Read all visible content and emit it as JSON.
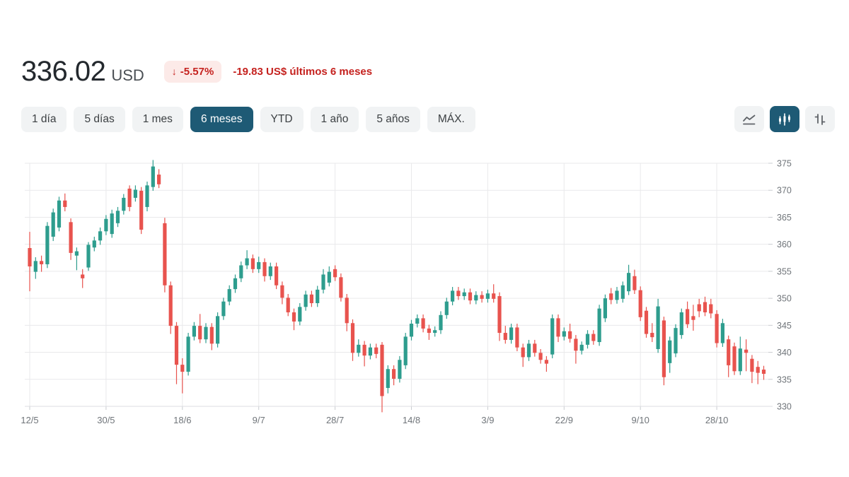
{
  "header": {
    "price": "336.02",
    "currency": "USD",
    "change_arrow": "↓",
    "change_percent": "-5.57%",
    "change_text": "-19.83 US$ últimos 6 meses"
  },
  "toolbar": {
    "ranges": [
      "1 día",
      "5 días",
      "1 mes",
      "6 meses",
      "YTD",
      "1 año",
      "5 años",
      "MÁX."
    ],
    "selected_range_index": 3,
    "chart_types": [
      "line-chart",
      "candlestick-chart",
      "ohlc-bars-chart"
    ],
    "selected_chart_type_index": 1
  },
  "colors": {
    "up": "#2e9d8e",
    "down": "#e8534e",
    "accent": "#1e5a75",
    "negative_text": "#c5221f",
    "negative_bg": "#fceae8",
    "grid": "#e9e9eb",
    "axis_text": "#70757a"
  },
  "chart_data": {
    "type": "candlestick",
    "title": "",
    "xlabel": "",
    "ylabel": "",
    "ylim": [
      328,
      376.5
    ],
    "y_ticks": [
      375,
      370,
      365,
      360,
      355,
      350,
      345,
      340,
      335,
      330
    ],
    "x_tick_labels": [
      "12/5",
      "30/5",
      "18/6",
      "9/7",
      "28/7",
      "14/8",
      "3/9",
      "22/9",
      "9/10",
      "28/10"
    ],
    "x_tick_indices": [
      0,
      13,
      26,
      39,
      52,
      65,
      78,
      91,
      104,
      117
    ],
    "legend": "none",
    "grid": "on",
    "candles": [
      [
        "12/5",
        359.3,
        362.3,
        351.3,
        355.9
      ],
      [
        "13/5",
        354.9,
        357.6,
        353.6,
        356.9
      ],
      [
        "14/5",
        356.9,
        357.9,
        354.9,
        356.3
      ],
      [
        "15/5",
        356.3,
        364.1,
        355.6,
        363.4
      ],
      [
        "16/5",
        361.4,
        366.6,
        360.6,
        365.9
      ],
      [
        "19/5",
        363.1,
        368.8,
        362.4,
        368.1
      ],
      [
        "20/5",
        368.1,
        369.4,
        366.1,
        366.9
      ],
      [
        "21/5",
        364.1,
        364.8,
        357.1,
        358.4
      ],
      [
        "22/5",
        357.9,
        359.4,
        355.2,
        358.7
      ],
      [
        "23/5",
        354.4,
        355.4,
        351.9,
        353.7
      ],
      [
        "27/5",
        355.7,
        360.4,
        355.1,
        359.9
      ],
      [
        "28/5",
        359.4,
        361.4,
        358.7,
        360.7
      ],
      [
        "29/5",
        360.7,
        363.1,
        359.9,
        362.4
      ],
      [
        "30/5",
        362.4,
        365.4,
        361.7,
        364.7
      ],
      [
        "2/6",
        361.9,
        366.4,
        361.2,
        365.7
      ],
      [
        "3/6",
        363.9,
        366.9,
        363.2,
        366.2
      ],
      [
        "4/6",
        366.2,
        369.3,
        365.5,
        368.6
      ],
      [
        "5/6",
        370.3,
        370.9,
        366.1,
        366.9
      ],
      [
        "6/6",
        368.6,
        370.9,
        367.9,
        370.1
      ],
      [
        "9/6",
        369.9,
        370.6,
        361.9,
        362.7
      ],
      [
        "10/6",
        366.9,
        371.6,
        366.1,
        370.9
      ],
      [
        "11/6",
        370.6,
        375.6,
        369.9,
        374.4
      ],
      [
        "12/6",
        372.9,
        373.9,
        370.4,
        371.1
      ],
      [
        "13/6",
        363.9,
        364.9,
        351.1,
        352.4
      ],
      [
        "16/6",
        352.4,
        353.1,
        343.4,
        344.9
      ],
      [
        "17/6",
        344.9,
        345.6,
        334.1,
        337.7
      ],
      [
        "18/6",
        337.7,
        338.9,
        332.4,
        336.4
      ],
      [
        "20/6",
        336.4,
        343.6,
        335.7,
        342.9
      ],
      [
        "23/6",
        342.9,
        345.6,
        342.2,
        344.9
      ],
      [
        "24/6",
        344.9,
        347.1,
        341.7,
        342.4
      ],
      [
        "25/6",
        342.4,
        345.4,
        341.7,
        344.7
      ],
      [
        "26/6",
        344.7,
        345.4,
        340.4,
        341.6
      ],
      [
        "27/6",
        341.6,
        347.4,
        340.9,
        346.7
      ],
      [
        "30/6",
        346.7,
        350.1,
        346.0,
        349.4
      ],
      [
        "1/7",
        349.4,
        352.4,
        348.7,
        351.7
      ],
      [
        "2/7",
        351.7,
        354.4,
        351.0,
        353.7
      ],
      [
        "3/7",
        353.7,
        356.8,
        353.0,
        356.1
      ],
      [
        "7/7",
        356.1,
        358.9,
        355.4,
        357.4
      ],
      [
        "8/7",
        357.4,
        358.1,
        354.7,
        355.4
      ],
      [
        "9/7",
        355.4,
        357.7,
        354.7,
        356.7
      ],
      [
        "10/7",
        356.7,
        357.4,
        353.1,
        354.1
      ],
      [
        "11/7",
        354.1,
        356.6,
        353.4,
        355.9
      ],
      [
        "14/7",
        355.9,
        356.6,
        351.7,
        352.4
      ],
      [
        "15/7",
        352.4,
        353.1,
        348.9,
        350.1
      ],
      [
        "16/7",
        350.1,
        350.8,
        346.7,
        347.4
      ],
      [
        "17/7",
        347.4,
        348.1,
        344.1,
        345.7
      ],
      [
        "18/7",
        345.7,
        349.1,
        345.0,
        348.4
      ],
      [
        "21/7",
        348.4,
        351.4,
        347.7,
        350.7
      ],
      [
        "22/7",
        350.7,
        351.4,
        348.4,
        349.1
      ],
      [
        "23/7",
        349.1,
        352.3,
        348.4,
        351.6
      ],
      [
        "24/7",
        351.6,
        355.4,
        350.9,
        354.4
      ],
      [
        "25/7",
        352.9,
        355.9,
        352.2,
        354.9
      ],
      [
        "28/7",
        355.4,
        356.1,
        353.2,
        353.9
      ],
      [
        "29/7",
        353.9,
        354.6,
        349.4,
        350.1
      ],
      [
        "30/7",
        350.1,
        350.8,
        343.9,
        345.4
      ],
      [
        "31/7",
        345.4,
        346.1,
        338.4,
        339.9
      ],
      [
        "1/8",
        339.9,
        342.4,
        339.2,
        341.4
      ],
      [
        "4/8",
        341.4,
        342.1,
        337.4,
        339.4
      ],
      [
        "5/8",
        339.4,
        341.6,
        338.7,
        340.9
      ],
      [
        "6/8",
        340.9,
        341.6,
        338.9,
        339.7
      ],
      [
        "7/8",
        341.4,
        341.9,
        328.9,
        331.9
      ],
      [
        "8/8",
        333.4,
        337.6,
        332.4,
        336.9
      ],
      [
        "11/8",
        336.9,
        337.6,
        333.9,
        335.1
      ],
      [
        "12/8",
        335.1,
        339.3,
        334.4,
        338.6
      ],
      [
        "13/8",
        337.6,
        343.6,
        336.9,
        342.9
      ],
      [
        "14/8",
        342.9,
        346.0,
        342.2,
        345.3
      ],
      [
        "15/8",
        345.3,
        347.0,
        344.6,
        346.3
      ],
      [
        "18/8",
        346.3,
        347.0,
        343.7,
        344.4
      ],
      [
        "19/8",
        344.4,
        345.1,
        342.3,
        343.6
      ],
      [
        "20/8",
        343.6,
        344.8,
        342.9,
        344.1
      ],
      [
        "21/8",
        344.1,
        347.6,
        343.4,
        346.9
      ],
      [
        "22/8",
        346.9,
        350.1,
        346.2,
        349.4
      ],
      [
        "25/8",
        349.4,
        352.1,
        348.7,
        351.4
      ],
      [
        "26/8",
        351.4,
        352.1,
        349.7,
        350.4
      ],
      [
        "27/8",
        350.4,
        351.8,
        349.7,
        351.1
      ],
      [
        "28/8",
        351.1,
        351.8,
        348.9,
        349.6
      ],
      [
        "29/8",
        349.6,
        351.3,
        348.9,
        350.6
      ],
      [
        "2/9",
        350.6,
        351.3,
        349.2,
        349.9
      ],
      [
        "3/9",
        349.9,
        351.6,
        349.2,
        350.9
      ],
      [
        "4/9",
        350.9,
        352.6,
        349.2,
        349.9
      ],
      [
        "5/9",
        350.4,
        351.1,
        342.1,
        343.6
      ],
      [
        "8/9",
        343.6,
        344.9,
        341.6,
        342.3
      ],
      [
        "9/9",
        342.3,
        345.3,
        341.6,
        344.6
      ],
      [
        "10/9",
        344.6,
        345.3,
        340.2,
        340.9
      ],
      [
        "11/9",
        340.9,
        341.6,
        337.3,
        339.1
      ],
      [
        "12/9",
        339.1,
        342.3,
        338.4,
        341.6
      ],
      [
        "15/9",
        341.6,
        342.3,
        339.2,
        339.9
      ],
      [
        "16/9",
        339.9,
        340.6,
        337.9,
        338.6
      ],
      [
        "17/9",
        338.6,
        339.3,
        336.4,
        337.9
      ],
      [
        "18/9",
        339.6,
        347.0,
        338.9,
        346.3
      ],
      [
        "19/9",
        346.3,
        347.0,
        341.9,
        342.9
      ],
      [
        "22/9",
        342.9,
        344.6,
        342.2,
        343.9
      ],
      [
        "23/9",
        343.9,
        345.3,
        341.8,
        342.5
      ],
      [
        "24/9",
        342.5,
        343.2,
        337.9,
        340.3
      ],
      [
        "25/9",
        340.3,
        342.0,
        339.6,
        341.4
      ],
      [
        "26/9",
        341.4,
        344.1,
        340.7,
        343.4
      ],
      [
        "29/9",
        343.4,
        344.1,
        341.4,
        342.1
      ],
      [
        "30/9",
        341.9,
        348.8,
        341.2,
        348.1
      ],
      [
        "1/10",
        346.3,
        350.7,
        345.6,
        350.0
      ],
      [
        "2/10",
        350.9,
        351.9,
        348.9,
        349.7
      ],
      [
        "3/10",
        349.7,
        352.1,
        349.0,
        351.4
      ],
      [
        "6/10",
        349.9,
        353.1,
        349.2,
        352.4
      ],
      [
        "7/10",
        351.3,
        356.2,
        350.6,
        354.7
      ],
      [
        "8/10",
        354.1,
        355.3,
        350.8,
        351.5
      ],
      [
        "9/10",
        351.5,
        352.2,
        345.8,
        346.5
      ],
      [
        "10/10",
        347.7,
        348.4,
        342.7,
        343.4
      ],
      [
        "13/10",
        343.6,
        345.4,
        341.9,
        342.8
      ],
      [
        "14/10",
        340.6,
        349.9,
        339.9,
        348.5
      ],
      [
        "15/10",
        345.9,
        346.6,
        333.9,
        335.4
      ],
      [
        "16/10",
        338.0,
        342.9,
        336.2,
        342.2
      ],
      [
        "17/10",
        339.8,
        345.2,
        339.1,
        344.5
      ],
      [
        "20/10",
        343.2,
        348.1,
        342.5,
        347.4
      ],
      [
        "21/10",
        348.0,
        349.4,
        344.5,
        345.2
      ],
      [
        "22/10",
        346.7,
        348.8,
        344.0,
        346.0
      ],
      [
        "23/10",
        348.9,
        349.9,
        346.5,
        347.6
      ],
      [
        "24/10",
        349.3,
        350.3,
        346.7,
        347.4
      ],
      [
        "27/10",
        348.9,
        349.9,
        346.3,
        347.2
      ],
      [
        "28/10",
        347.1,
        347.8,
        340.9,
        341.7
      ],
      [
        "29/10",
        341.7,
        346.2,
        341.0,
        345.4
      ],
      [
        "30/10",
        342.4,
        343.1,
        335.4,
        337.6
      ],
      [
        "31/10",
        341.1,
        341.8,
        335.8,
        336.5
      ],
      [
        "3/11",
        336.5,
        342.9,
        335.8,
        340.7
      ],
      [
        "4/11",
        340.5,
        342.4,
        336.5,
        339.9
      ],
      [
        "5/11",
        338.8,
        339.5,
        334.3,
        336.4
      ],
      [
        "6/11",
        337.3,
        338.4,
        334.1,
        336.2
      ],
      [
        "7/11",
        336.8,
        337.5,
        334.9,
        336.02
      ]
    ]
  }
}
